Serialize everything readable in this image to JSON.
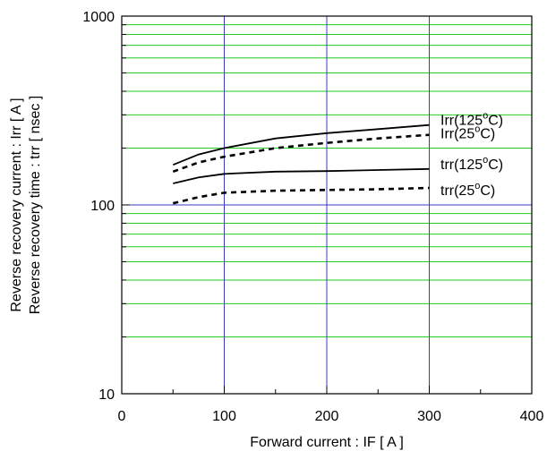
{
  "chart_data": {
    "type": "line",
    "xlabel": "Forward current : IF [ A ]",
    "ylabel_lines": [
      "Reverse recovery current : Irr [ A ]",
      "Reverse recovery time : trr [ nsec ]"
    ],
    "x_scale": "linear",
    "y_scale": "log",
    "xlim": [
      0,
      400
    ],
    "ylim": [
      10,
      1000
    ],
    "x_ticks": [
      0,
      100,
      200,
      300,
      400
    ],
    "x_tick_labels": [
      "0",
      "100",
      "200",
      "300",
      "400"
    ],
    "y_tick_labels": [
      "10",
      "100",
      "1000"
    ],
    "major_grid_color": "#3b3bbf",
    "minor_grid_color": "#22cc22",
    "series": [
      {
        "base": "Irr",
        "sup": "o",
        "tail": "C)",
        "temp": "125",
        "style": "solid",
        "x": [
          50,
          75,
          100,
          150,
          200,
          250,
          300
        ],
        "y": [
          163,
          185,
          200,
          225,
          240,
          252,
          265
        ]
      },
      {
        "base": "Irr",
        "sup": "o",
        "tail": "C)",
        "temp": "25",
        "style": "dashed",
        "x": [
          50,
          75,
          100,
          150,
          200,
          250,
          300
        ],
        "y": [
          150,
          168,
          180,
          200,
          213,
          225,
          235
        ]
      },
      {
        "base": "trr",
        "sup": "o",
        "tail": "C)",
        "temp": "125",
        "style": "solid",
        "x": [
          50,
          75,
          100,
          150,
          200,
          250,
          300
        ],
        "y": [
          130,
          140,
          146,
          150,
          151,
          153,
          155
        ]
      },
      {
        "base": "trr",
        "sup": "o",
        "tail": "C)",
        "temp": "25",
        "style": "dashed",
        "x": [
          50,
          75,
          100,
          150,
          200,
          250,
          300
        ],
        "y": [
          102,
          110,
          116,
          119,
          120,
          121,
          123
        ]
      }
    ]
  }
}
